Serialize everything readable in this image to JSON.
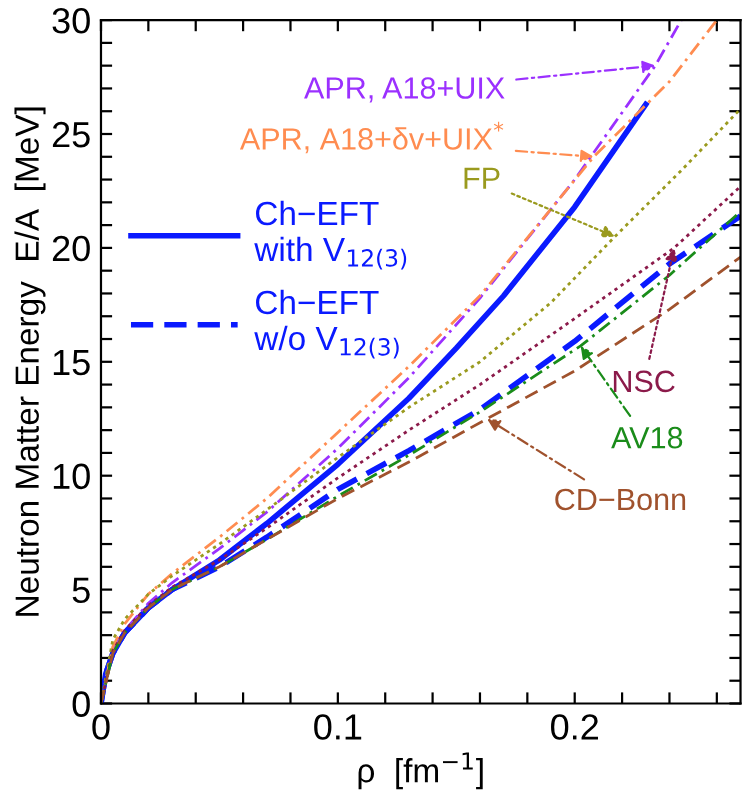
{
  "chart_data": {
    "type": "line",
    "xlabel": "ρ  [fm$^{−1}$]",
    "ylabel": "Neutron Matter Energy  E/A  [MeV]",
    "xlim": [
      0,
      0.27
    ],
    "ylim": [
      0,
      30
    ],
    "xticks": [
      0,
      {
        "value": 0.02,
        "label": null
      },
      {
        "value": 0.04,
        "label": null
      },
      {
        "value": 0.06,
        "label": null
      },
      {
        "value": 0.08,
        "label": null
      },
      0.1,
      {
        "value": 0.12,
        "label": null
      },
      {
        "value": 0.14,
        "label": null
      },
      {
        "value": 0.16,
        "label": null
      },
      {
        "value": 0.18,
        "label": null
      },
      0.2,
      {
        "value": 0.22,
        "label": null
      },
      {
        "value": 0.24,
        "label": null
      },
      {
        "value": 0.26,
        "label": null
      }
    ],
    "yticks": [
      0,
      {
        "value": 1,
        "label": null
      },
      {
        "value": 2,
        "label": null
      },
      {
        "value": 3,
        "label": null
      },
      {
        "value": 4,
        "label": null
      },
      5,
      {
        "value": 6,
        "label": null
      },
      {
        "value": 7,
        "label": null
      },
      {
        "value": 8,
        "label": null
      },
      {
        "value": 9,
        "label": null
      },
      10,
      {
        "value": 11,
        "label": null
      },
      {
        "value": 12,
        "label": null
      },
      {
        "value": 13,
        "label": null
      },
      {
        "value": 14,
        "label": null
      },
      15,
      {
        "value": 16,
        "label": null
      },
      {
        "value": 17,
        "label": null
      },
      {
        "value": 18,
        "label": null
      },
      {
        "value": 19,
        "label": null
      },
      20,
      {
        "value": 21,
        "label": null
      },
      {
        "value": 22,
        "label": null
      },
      {
        "value": 23,
        "label": null
      },
      {
        "value": 24,
        "label": null
      },
      25,
      {
        "value": 26,
        "label": null
      },
      {
        "value": 27,
        "label": null
      },
      {
        "value": 28,
        "label": null
      },
      {
        "value": 29,
        "label": null
      },
      30
    ],
    "grid": false,
    "legend": "left",
    "marker": "none",
    "series": [
      {
        "name": "Ch−EFT\nwith V$_{12(3)}$",
        "color": "#0a1aff",
        "line_style": "solid",
        "x": [
          0,
          0.002,
          0.005,
          0.01,
          0.02,
          0.03,
          0.05,
          0.07,
          0.1,
          0.13,
          0.15,
          0.17,
          0.2,
          0.23
        ],
        "values": [
          0,
          1.3,
          2.2,
          3.1,
          4.2,
          5.0,
          6.3,
          7.9,
          10.5,
          13.4,
          15.6,
          17.9,
          21.8,
          26.3
        ]
      },
      {
        "name": "Ch−EFT\nw/o V$_{12(3)}$",
        "color": "#0a1aff",
        "line_style": "dashed",
        "x": [
          0,
          0.002,
          0.005,
          0.01,
          0.02,
          0.03,
          0.05,
          0.07,
          0.1,
          0.13,
          0.16,
          0.2,
          0.24,
          0.27
        ],
        "values": [
          0,
          1.3,
          2.2,
          3.1,
          4.2,
          5.0,
          6.0,
          7.3,
          9.4,
          11.1,
          12.9,
          15.9,
          19.3,
          21.4
        ]
      },
      {
        "color": "#9b30ff",
        "line_style": "dashdot",
        "x": [
          0,
          0.005,
          0.01,
          0.02,
          0.03,
          0.05,
          0.07,
          0.1,
          0.13,
          0.16,
          0.2,
          0.234,
          0.245
        ],
        "values": [
          0,
          2.3,
          3.2,
          4.4,
          5.3,
          6.8,
          8.4,
          11.2,
          14.3,
          17.8,
          23.0,
          28.0,
          30
        ]
      },
      {
        "color": "#ff8c50",
        "line_style": "dashdot",
        "x": [
          0,
          0.005,
          0.01,
          0.02,
          0.03,
          0.05,
          0.07,
          0.1,
          0.13,
          0.16,
          0.208,
          0.24,
          0.26
        ],
        "values": [
          0,
          2.5,
          3.5,
          4.8,
          5.7,
          7.3,
          9.0,
          11.9,
          14.8,
          17.9,
          24.0,
          27.3,
          30
        ]
      },
      {
        "color": "#9a9a1e",
        "line_style": "dotted",
        "x": [
          0,
          0.005,
          0.01,
          0.02,
          0.03,
          0.05,
          0.07,
          0.1,
          0.13,
          0.16,
          0.19,
          0.217,
          0.245,
          0.27
        ],
        "values": [
          0,
          2.8,
          3.7,
          4.8,
          5.6,
          7.0,
          8.5,
          10.8,
          13.0,
          15.0,
          17.6,
          20.5,
          23.4,
          26.1
        ]
      },
      {
        "color": "#8b1a4a",
        "line_style": "dotted",
        "x": [
          0,
          0.005,
          0.01,
          0.02,
          0.03,
          0.05,
          0.07,
          0.1,
          0.13,
          0.16,
          0.2,
          0.242,
          0.27
        ],
        "values": [
          0,
          2.3,
          3.2,
          4.3,
          5.1,
          6.3,
          7.7,
          9.9,
          12.0,
          14.0,
          16.9,
          20.0,
          22.7
        ]
      },
      {
        "color": "#1a8c1a",
        "line_style": "dashdot",
        "x": [
          0,
          0.005,
          0.01,
          0.02,
          0.03,
          0.05,
          0.07,
          0.1,
          0.13,
          0.16,
          0.2025,
          0.24,
          0.27
        ],
        "values": [
          0,
          2.2,
          3.1,
          4.2,
          5.0,
          6.0,
          7.2,
          9.1,
          10.9,
          12.8,
          15.7,
          18.8,
          21.6
        ]
      },
      {
        "color": "#a0522d",
        "line_style": "dashed",
        "x": [
          0,
          0.005,
          0.01,
          0.02,
          0.03,
          0.05,
          0.07,
          0.1,
          0.13,
          0.163,
          0.2,
          0.24,
          0.27
        ],
        "values": [
          0,
          2.2,
          3.1,
          4.2,
          5.0,
          6.0,
          7.2,
          9.0,
          10.6,
          12.5,
          14.6,
          17.3,
          19.6
        ]
      }
    ],
    "annotations": [
      {
        "text": "APR, A18+UIX",
        "x": 0.234,
        "y": 28.0
      },
      {
        "text": "APR, A18+δv+UIX$^{*}$",
        "x": 0.208,
        "y": 24.0
      },
      {
        "text": "FP",
        "x": 0.217,
        "y": 20.5
      },
      {
        "text": "NSC",
        "x": 0.242,
        "y": 20.0
      },
      {
        "text": "AV18",
        "x": 0.2025,
        "y": 15.7
      },
      {
        "text": "CD−Bonn",
        "x": 0.163,
        "y": 12.5
      }
    ]
  }
}
